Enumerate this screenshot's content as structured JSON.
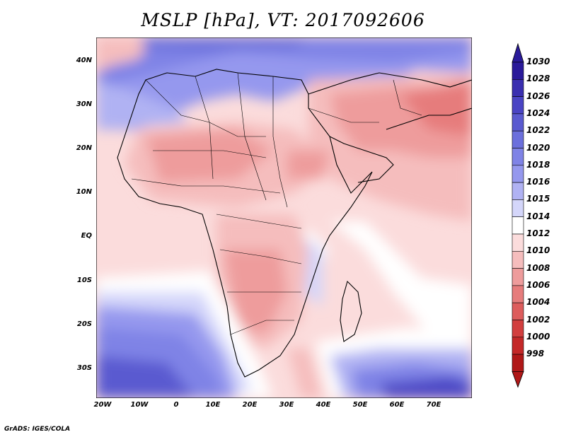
{
  "title": "MSLP [hPa], VT: 2017092606",
  "footer": "GrADS: IGES/COLA",
  "axes": {
    "lat_labels": [
      "40N",
      "30N",
      "20N",
      "10N",
      "EQ",
      "10S",
      "20S",
      "30S"
    ],
    "lon_labels": [
      "20W",
      "10W",
      "0",
      "10E",
      "20E",
      "30E",
      "40E",
      "50E",
      "60E",
      "70E"
    ]
  },
  "colorbar": {
    "levels": [
      "1030",
      "1028",
      "1026",
      "1024",
      "1022",
      "1020",
      "1018",
      "1016",
      "1015",
      "1014",
      "1012",
      "1010",
      "1008",
      "1006",
      "1004",
      "1002",
      "1000",
      "998"
    ],
    "colors": [
      "#2a1a9a",
      "#3a2fb0",
      "#4a44c4",
      "#5a5ad0",
      "#6b6fdc",
      "#7f83e6",
      "#9598ee",
      "#b0b2f3",
      "#d4d6fa",
      "#ffffff",
      "#fbdcdc",
      "#f5bdbd",
      "#ee9c9c",
      "#e67c7c",
      "#dd5d5d",
      "#d23f3f",
      "#c42828",
      "#b01818"
    ]
  }
}
